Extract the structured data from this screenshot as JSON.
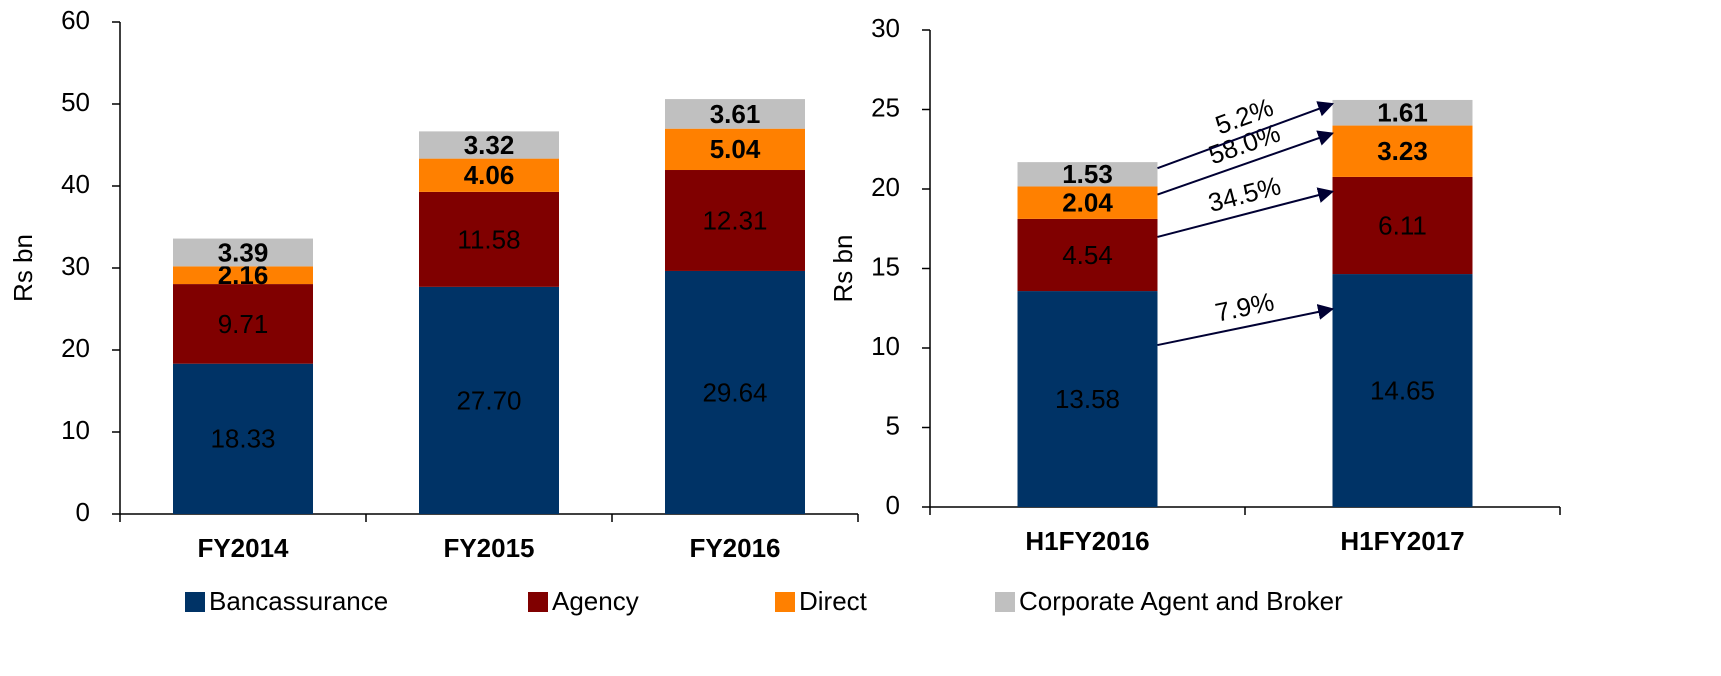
{
  "chart_data": [
    {
      "type": "stacked_bar",
      "y_label": "Rs bn",
      "categories": [
        "FY2014",
        "FY2015",
        "FY2016"
      ],
      "series": [
        {
          "values": [
            18.33,
            27.7,
            29.64
          ],
          "value_labels": [
            "18.33",
            "27.70",
            "29.64"
          ]
        },
        {
          "values": [
            9.71,
            11.58,
            12.31
          ],
          "value_labels": [
            "9.71",
            "11.58",
            "12.31"
          ]
        },
        {
          "values": [
            2.16,
            4.06,
            5.04
          ],
          "value_labels": [
            "2.16",
            "4.06",
            "5.04"
          ]
        },
        {
          "values": [
            3.39,
            3.32,
            3.61
          ],
          "value_labels": [
            "3.39",
            "3.32",
            "3.61"
          ]
        }
      ],
      "ylim": [
        0,
        60
      ],
      "yticks": [
        0,
        10,
        20,
        30,
        40,
        50,
        60
      ]
    },
    {
      "type": "stacked_bar",
      "y_label": "Rs bn",
      "categories": [
        "H1FY2016",
        "H1FY2017"
      ],
      "series": [
        {
          "values": [
            13.58,
            14.65
          ],
          "value_labels": [
            "13.58",
            "14.65"
          ]
        },
        {
          "values": [
            4.54,
            6.11
          ],
          "value_labels": [
            "4.54",
            "6.11"
          ]
        },
        {
          "values": [
            2.04,
            3.23
          ],
          "value_labels": [
            "2.04",
            "3.23"
          ]
        },
        {
          "values": [
            1.53,
            1.61
          ],
          "value_labels": [
            "1.53",
            "1.61"
          ]
        }
      ],
      "annotations": [
        "7.9%",
        "34.5%",
        "58.0%",
        "5.2%"
      ],
      "ylim": [
        0,
        30
      ],
      "yticks": [
        0,
        5,
        10,
        15,
        20,
        25,
        30
      ]
    }
  ],
  "legend": [
    {
      "name": "Bancassurance",
      "color": "#003366"
    },
    {
      "name": "Agency",
      "color": "#800000"
    },
    {
      "name": "Direct",
      "color": "#ff8000"
    },
    {
      "name": "Corporate Agent and Broker",
      "color": "#c0c0c0"
    }
  ]
}
